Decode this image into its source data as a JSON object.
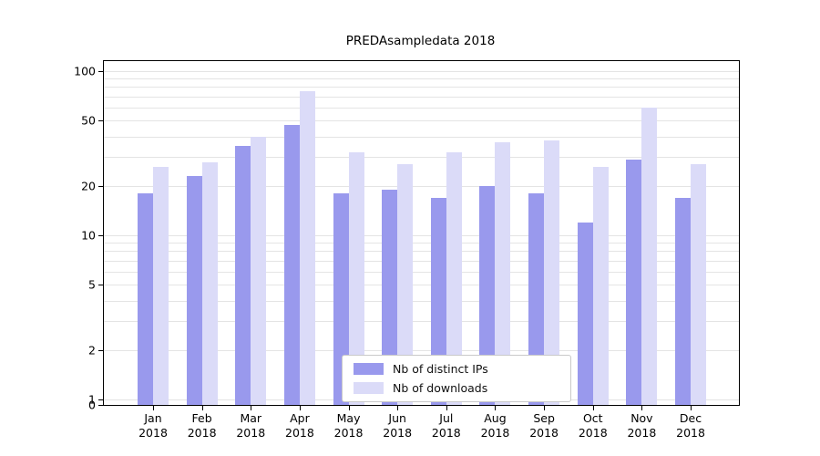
{
  "chart_data": {
    "type": "bar",
    "title": "PREDAsampledata 2018",
    "categories": [
      "Jan",
      "Feb",
      "Mar",
      "Apr",
      "May",
      "Jun",
      "Jul",
      "Aug",
      "Sep",
      "Oct",
      "Nov",
      "Dec"
    ],
    "year_label": "2018",
    "series": [
      {
        "name": "Nb of distinct IPs",
        "color": "#9999ed",
        "values": [
          18,
          23,
          35,
          47,
          18,
          19,
          17,
          20,
          18,
          12,
          29,
          17
        ]
      },
      {
        "name": "Nb of downloads",
        "color": "#dbdbf8",
        "values": [
          26,
          28,
          40,
          75,
          32,
          27,
          32,
          37,
          38,
          26,
          60,
          27
        ]
      }
    ],
    "yscale": "log",
    "yticks": [
      0,
      1,
      2,
      5,
      10,
      20,
      50,
      100
    ],
    "ylim": [
      0,
      115
    ],
    "xlabel": "",
    "ylabel": "",
    "grid": "horizontal-log-minor",
    "legend_position": "lower-center"
  }
}
